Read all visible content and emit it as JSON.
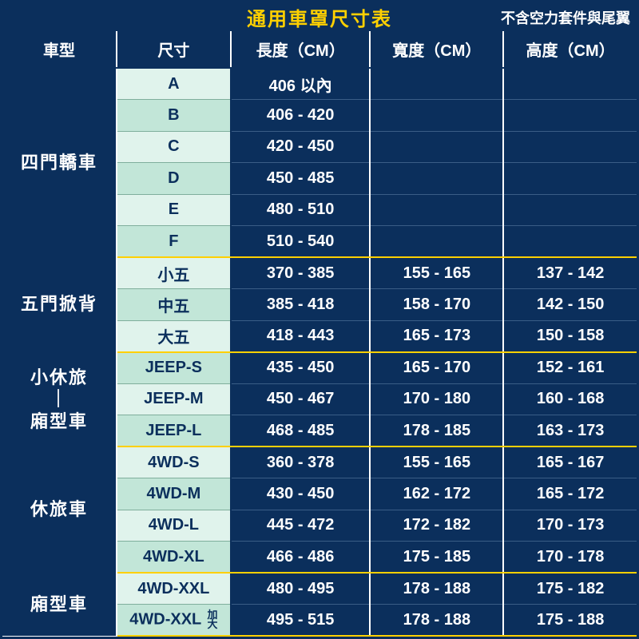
{
  "title": "通用車罩尺寸表",
  "subtitle": "不含空力套件與尾翼",
  "colors": {
    "navy": "#0b2f5c",
    "yellow": "#ffd000",
    "mint_light": "#e0f3ec",
    "mint_dark": "#c2e6d8",
    "size_row_border": "#7fae9c",
    "val_row_border": "#3a5d86",
    "white": "#ffffff"
  },
  "columns": [
    "車型",
    "尺寸",
    "長度（CM）",
    "寬度（CM）",
    "高度（CM）"
  ],
  "groups": [
    {
      "type": "四門轎車",
      "type_html": "四門轎車",
      "rows": [
        {
          "size": "A",
          "len": "406 以內",
          "wid": "",
          "hei": ""
        },
        {
          "size": "B",
          "len": "406 - 420",
          "wid": "",
          "hei": ""
        },
        {
          "size": "C",
          "len": "420 - 450",
          "wid": "",
          "hei": ""
        },
        {
          "size": "D",
          "len": "450 - 485",
          "wid": "",
          "hei": ""
        },
        {
          "size": "E",
          "len": "480 - 510",
          "wid": "",
          "hei": ""
        },
        {
          "size": "F",
          "len": "510 - 540",
          "wid": "",
          "hei": ""
        }
      ]
    },
    {
      "type": "五門掀背",
      "type_html": "五門掀背",
      "rows": [
        {
          "size": "小五",
          "len": "370 - 385",
          "wid": "155 - 165",
          "hei": "137 - 142"
        },
        {
          "size": "中五",
          "len": "385 - 418",
          "wid": "158 - 170",
          "hei": "142 - 150"
        },
        {
          "size": "大五",
          "len": "418 - 443",
          "wid": "165 - 173",
          "hei": "150 - 158"
        }
      ]
    },
    {
      "type": "小休旅｜廂型車",
      "type_html": "<div class='stack'>小休旅<br>｜<br>廂型車</div>",
      "rows": [
        {
          "size": "JEEP-S",
          "len": "435 - 450",
          "wid": "165 - 170",
          "hei": "152 - 161"
        },
        {
          "size": "JEEP-M",
          "len": "450 - 467",
          "wid": "170 - 180",
          "hei": "160 - 168"
        },
        {
          "size": "JEEP-L",
          "len": "468 - 485",
          "wid": "178 - 185",
          "hei": "163 - 173"
        }
      ]
    },
    {
      "type": "休旅車",
      "type_html": "休旅車",
      "rows": [
        {
          "size": "4WD-S",
          "len": "360 - 378",
          "wid": "155 - 165",
          "hei": "165 - 167"
        },
        {
          "size": "4WD-M",
          "len": "430 - 450",
          "wid": "162 - 172",
          "hei": "165 - 172"
        },
        {
          "size": "4WD-L",
          "len": "445 - 472",
          "wid": "172 - 182",
          "hei": "170 - 173"
        },
        {
          "size": "4WD-XL",
          "len": "466 - 486",
          "wid": "175 - 185",
          "hei": "170 - 178"
        }
      ]
    },
    {
      "type": "廂型車",
      "type_html": "廂型車",
      "rows": [
        {
          "size": "4WD-XXL",
          "len": "480 - 495",
          "wid": "178 - 188",
          "hei": "175 - 182"
        },
        {
          "size": "4WD-XXL 加大",
          "size_html": "4WD-XXL <span class='suffix'>加<br>大</span>",
          "len": "495 - 515",
          "wid": "178 - 188",
          "hei": "175 - 188"
        }
      ]
    }
  ]
}
